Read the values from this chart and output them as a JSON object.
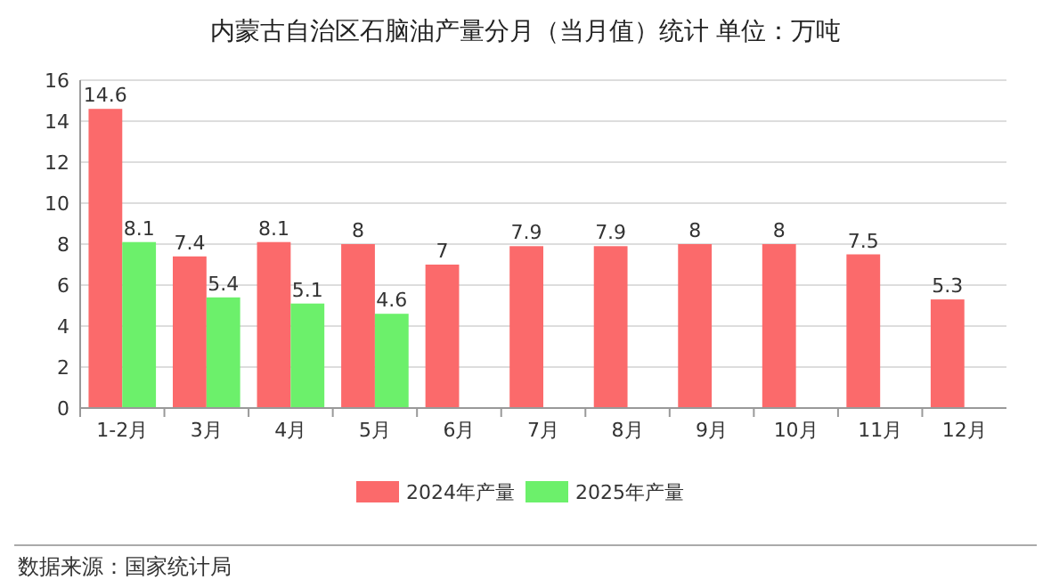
{
  "chart_data": {
    "type": "bar",
    "title": "内蒙古自治区石脑油产量分月（当月值）统计 单位：万吨",
    "categories": [
      "1-2月",
      "3月",
      "4月",
      "5月",
      "6月",
      "7月",
      "8月",
      "9月",
      "10月",
      "11月",
      "12月"
    ],
    "series": [
      {
        "name": "2024年产量",
        "color": "#fb6a6b",
        "values": [
          14.6,
          7.4,
          8.1,
          8,
          7,
          7.9,
          7.9,
          8,
          8,
          7.5,
          5.3
        ]
      },
      {
        "name": "2025年产量",
        "color": "#6cf06b",
        "values": [
          8.1,
          5.4,
          5.1,
          4.6,
          null,
          null,
          null,
          null,
          null,
          null,
          null
        ]
      }
    ],
    "ylim": [
      0,
      16
    ],
    "yticks": [
      0,
      2,
      4,
      6,
      8,
      10,
      12,
      14,
      16
    ],
    "grid": "y",
    "legend": "bottom",
    "data_labels": true,
    "annotations": [
      "数据来源：国家统计局"
    ]
  }
}
